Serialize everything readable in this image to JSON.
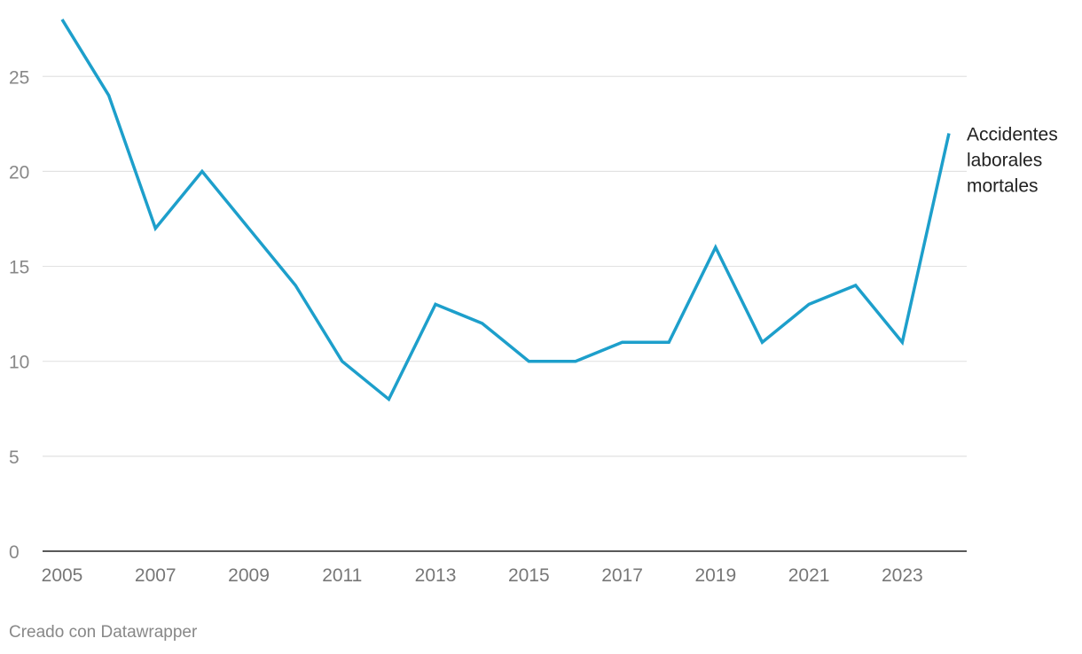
{
  "chart_data": {
    "type": "line",
    "x": [
      2005,
      2006,
      2007,
      2008,
      2009,
      2010,
      2011,
      2012,
      2013,
      2014,
      2015,
      2016,
      2017,
      2018,
      2019,
      2020,
      2021,
      2022,
      2023,
      2024
    ],
    "series": [
      {
        "name": "Accidentes laborales mortales",
        "values": [
          28,
          24,
          17,
          20,
          17,
          14,
          10,
          8,
          13,
          12,
          10,
          10,
          11,
          11,
          16,
          11,
          13,
          14,
          11,
          22
        ],
        "color": "#1d9fcb"
      }
    ],
    "series_label_lines": [
      "Accidentes",
      "laborales",
      "mortales"
    ],
    "yticks": [
      "0",
      "5",
      "10",
      "15",
      "20",
      "25"
    ],
    "xticks": [
      "2005",
      "2007",
      "2009",
      "2011",
      "2013",
      "2015",
      "2017",
      "2019",
      "2021",
      "2023"
    ],
    "ylim": [
      0,
      28
    ],
    "grid": true,
    "legend": "inline label at line end"
  },
  "footer": {
    "credit": "Creado con Datawrapper"
  }
}
